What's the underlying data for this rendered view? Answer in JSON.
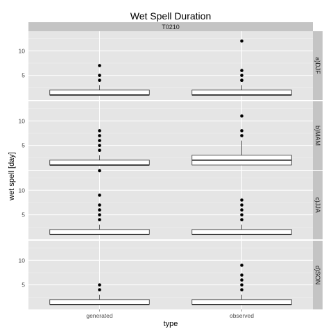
{
  "chart_data": {
    "type": "box",
    "title": "Wet Spell Duration",
    "facet_col": "T0210",
    "xlabel": "type",
    "ylabel": "wet spell [day]",
    "categories": [
      "generated",
      "observed"
    ],
    "ylim": [
      0,
      14
    ],
    "yticks": [
      5,
      10
    ],
    "panels": [
      {
        "label": "a)DJF",
        "boxes": [
          {
            "category": "generated",
            "q1": 1,
            "median": 1,
            "q3": 2,
            "whisker_low": 1,
            "whisker_high": 3,
            "outliers": [
              4,
              5,
              7
            ]
          },
          {
            "category": "observed",
            "q1": 1,
            "median": 1,
            "q3": 2,
            "whisker_low": 1,
            "whisker_high": 3,
            "outliers": [
              4,
              4,
              5,
              6,
              12
            ]
          }
        ]
      },
      {
        "label": "b)MAM",
        "boxes": [
          {
            "category": "generated",
            "q1": 1,
            "median": 1,
            "q3": 2,
            "whisker_low": 1,
            "whisker_high": 3,
            "outliers": [
              4,
              5,
              6,
              7,
              8
            ]
          },
          {
            "category": "observed",
            "q1": 1,
            "median": 2,
            "q3": 3,
            "whisker_low": 1,
            "whisker_high": 6,
            "outliers": [
              7,
              8,
              11
            ]
          }
        ]
      },
      {
        "label": "c)JJA",
        "boxes": [
          {
            "category": "generated",
            "q1": 1,
            "median": 1,
            "q3": 2,
            "whisker_low": 1,
            "whisker_high": 3,
            "outliers": [
              4,
              5,
              6,
              7,
              9,
              14
            ]
          },
          {
            "category": "observed",
            "q1": 1,
            "median": 1,
            "q3": 2,
            "whisker_low": 1,
            "whisker_high": 3,
            "outliers": [
              4,
              5,
              6,
              7,
              8
            ]
          }
        ]
      },
      {
        "label": "d)SON",
        "boxes": [
          {
            "category": "generated",
            "q1": 1,
            "median": 1,
            "q3": 2,
            "whisker_low": 1,
            "whisker_high": 3,
            "outliers": [
              4,
              5
            ]
          },
          {
            "category": "observed",
            "q1": 1,
            "median": 1,
            "q3": 2,
            "whisker_low": 1,
            "whisker_high": 3,
            "outliers": [
              4,
              5,
              6,
              7,
              9
            ]
          }
        ]
      }
    ],
    "colors": {
      "panel_background": "#e5e5e5",
      "grid_major": "#ffffff",
      "grid_minor": "#f2f2f2",
      "strip_background": "#c4c4c4",
      "box_fill": "#ffffff",
      "box_stroke": "#333333",
      "outlier": "#000000"
    }
  }
}
